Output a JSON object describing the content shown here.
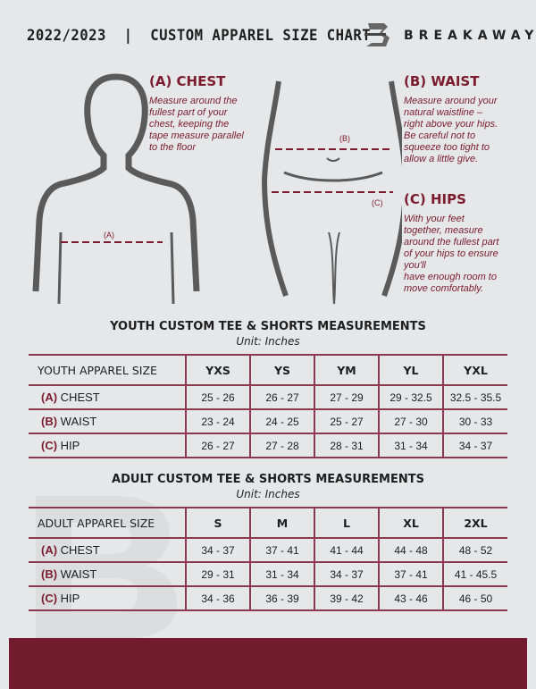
{
  "header": {
    "title": "2022/2023  |  CUSTOM APPAREL SIZE CHART",
    "brand": "BREAKAWAY"
  },
  "measure": {
    "chest": {
      "heading": "(A) CHEST",
      "text": [
        "Measure around the",
        "fullest part of your",
        "chest, keeping the",
        "tape measure parallel",
        "to the floor"
      ],
      "marker": "(A)"
    },
    "waist": {
      "heading": "(B) WAIST",
      "text": [
        "Measure around your",
        "natural waistline –",
        "right above your hips.",
        "Be careful not to",
        "squeeze too tight to",
        "allow a little give."
      ],
      "marker": "(B)"
    },
    "hips": {
      "heading": "(C) HIPS",
      "text": [
        "With your feet",
        "together, measure",
        "around the fullest part",
        "of your hips to ensure",
        "you'll",
        "have enough room to",
        "move comfortably."
      ],
      "marker": "(C)"
    }
  },
  "youth": {
    "title": "YOUTH CUSTOM TEE & SHORTS MEASUREMENTS",
    "unit": "Unit: Inches",
    "header": "YOUTH APPAREL SIZE",
    "sizes": [
      "YXS",
      "YS",
      "YM",
      "YL",
      "YXL"
    ],
    "rows": [
      {
        "code": "(A)",
        "label": "CHEST",
        "values": [
          "25 - 26",
          "26 - 27",
          "27 - 29",
          "29 - 32.5",
          "32.5 - 35.5"
        ]
      },
      {
        "code": "(B)",
        "label": "WAIST",
        "values": [
          "23 - 24",
          "24 - 25",
          "25 - 27",
          "27 - 30",
          "30 - 33"
        ]
      },
      {
        "code": "(C)",
        "label": "HIP",
        "values": [
          "26 - 27",
          "27 - 28",
          "28 - 31",
          "31 - 34",
          "34 - 37"
        ]
      }
    ]
  },
  "adult": {
    "title": "ADULT CUSTOM TEE & SHORTS MEASUREMENTS",
    "unit": "Unit: Inches",
    "header": "ADULT APPAREL SIZE",
    "sizes": [
      "S",
      "M",
      "L",
      "XL",
      "2XL"
    ],
    "rows": [
      {
        "code": "(A)",
        "label": "CHEST",
        "values": [
          "34 - 37",
          "37 - 41",
          "41 - 44",
          "44 - 48",
          "48 - 52"
        ]
      },
      {
        "code": "(B)",
        "label": "WAIST",
        "values": [
          "29 - 31",
          "31 - 34",
          "34 - 37",
          "37 - 41",
          "41 - 45.5"
        ]
      },
      {
        "code": "(C)",
        "label": "HIP",
        "values": [
          "34 - 36",
          "36 - 39",
          "39 - 42",
          "43 - 46",
          "46 - 50"
        ]
      }
    ]
  },
  "colors": {
    "accent": "#7a1b2e",
    "background": "#e6e7e8"
  }
}
